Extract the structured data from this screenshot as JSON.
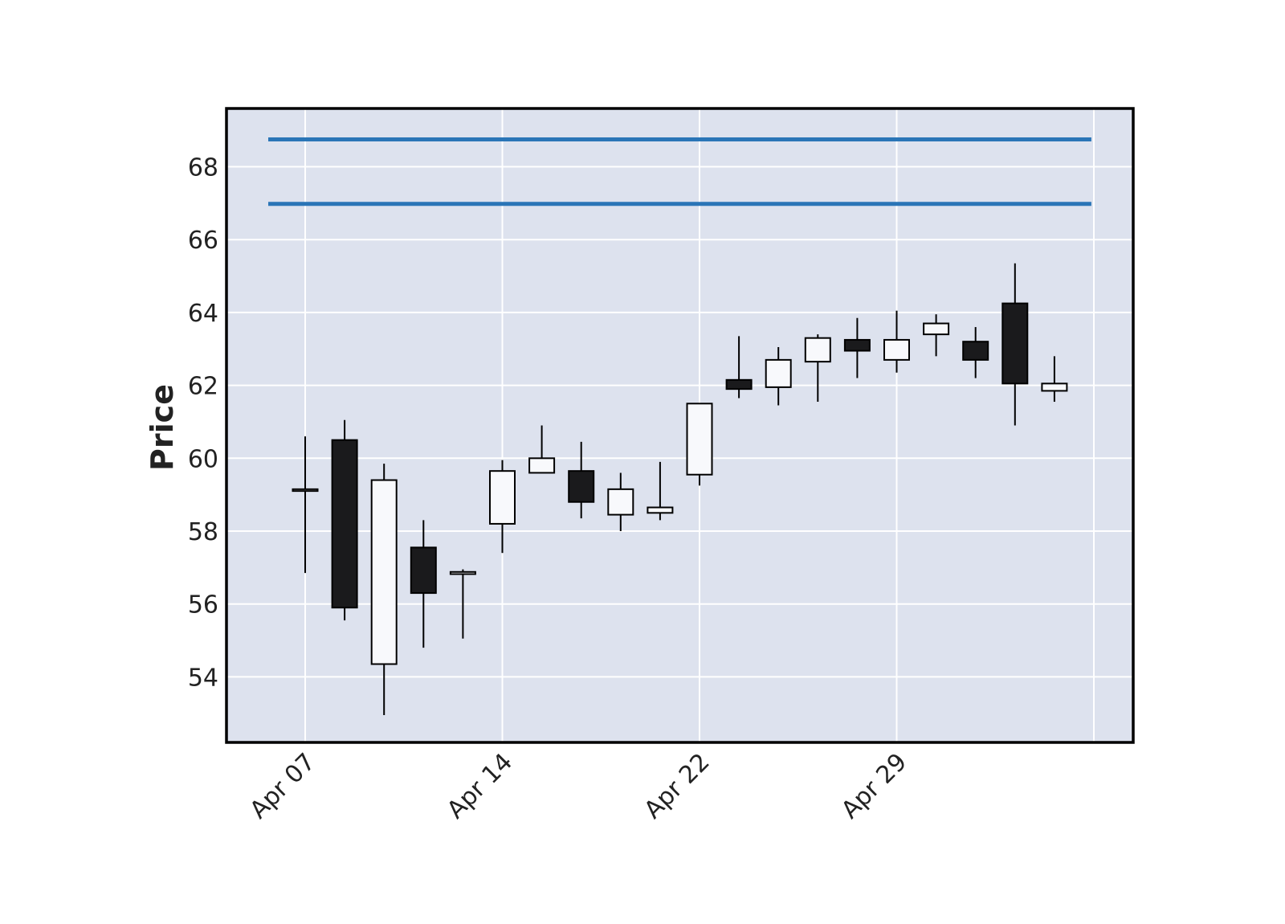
{
  "chart_data": {
    "type": "candlestick",
    "title": "",
    "xlabel": "",
    "ylabel": "Price",
    "ylim": [
      52.2,
      69.6
    ],
    "y_ticks": [
      54,
      56,
      58,
      60,
      62,
      64,
      66,
      68
    ],
    "x_tick_labels": [
      "Apr 07",
      "Apr 14",
      "Apr 22",
      "Apr 29"
    ],
    "x_tick_indices": [
      0,
      5,
      10,
      15
    ],
    "grid": true,
    "colors": {
      "plot_background": "#dde2ee",
      "grid": "#ffffff",
      "up_body": "#f8f9fc",
      "down_body": "#1a1a1c",
      "wick": "#000000",
      "hline": "#2a75b7",
      "frame": "#000000"
    },
    "hlines": [
      68.75,
      66.98
    ],
    "candles": [
      {
        "open": 59.1,
        "high": 60.6,
        "low": 56.85,
        "close": 59.15
      },
      {
        "open": 60.5,
        "high": 61.05,
        "low": 55.55,
        "close": 55.9
      },
      {
        "open": 54.35,
        "high": 59.85,
        "low": 52.95,
        "close": 59.4
      },
      {
        "open": 57.55,
        "high": 58.3,
        "low": 54.8,
        "close": 56.3
      },
      {
        "open": 56.82,
        "high": 56.95,
        "low": 55.05,
        "close": 56.88
      },
      {
        "open": 58.2,
        "high": 59.95,
        "low": 57.4,
        "close": 59.65
      },
      {
        "open": 59.6,
        "high": 60.9,
        "low": 59.6,
        "close": 60.0
      },
      {
        "open": 59.65,
        "high": 60.45,
        "low": 58.35,
        "close": 58.8
      },
      {
        "open": 58.45,
        "high": 59.6,
        "low": 58.0,
        "close": 59.15
      },
      {
        "open": 58.5,
        "high": 59.9,
        "low": 58.3,
        "close": 58.65
      },
      {
        "open": 59.55,
        "high": 61.5,
        "low": 59.25,
        "close": 61.5
      },
      {
        "open": 62.15,
        "high": 63.35,
        "low": 61.65,
        "close": 61.9
      },
      {
        "open": 61.95,
        "high": 63.05,
        "low": 61.45,
        "close": 62.7
      },
      {
        "open": 62.65,
        "high": 63.4,
        "low": 61.55,
        "close": 63.3
      },
      {
        "open": 63.25,
        "high": 63.85,
        "low": 62.2,
        "close": 62.95
      },
      {
        "open": 62.7,
        "high": 64.05,
        "low": 62.35,
        "close": 63.25
      },
      {
        "open": 63.4,
        "high": 63.95,
        "low": 62.8,
        "close": 63.7
      },
      {
        "open": 63.2,
        "high": 63.6,
        "low": 62.2,
        "close": 62.7
      },
      {
        "open": 64.25,
        "high": 65.35,
        "low": 60.9,
        "close": 62.05
      },
      {
        "open": 61.85,
        "high": 62.8,
        "low": 61.55,
        "close": 62.05
      }
    ]
  }
}
